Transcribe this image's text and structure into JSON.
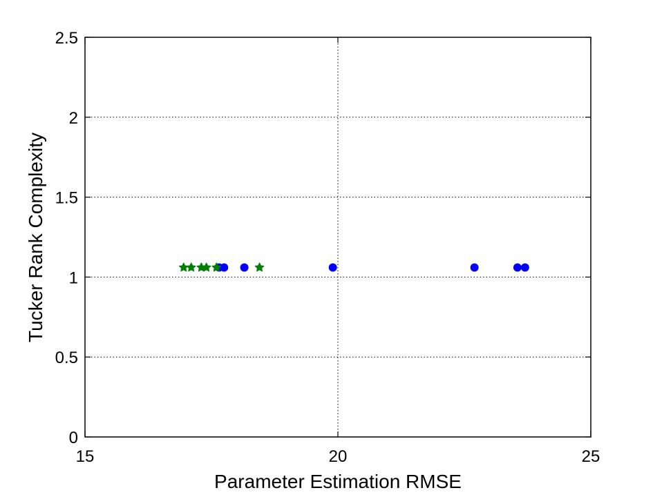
{
  "chart_data": {
    "type": "scatter",
    "title": "",
    "xlabel": "Parameter Estimation RMSE",
    "ylabel": "Tucker Rank Complexity",
    "xlim": [
      15,
      25
    ],
    "ylim": [
      0,
      2.5
    ],
    "x_ticks": [
      15,
      20,
      25
    ],
    "x_tick_labels": [
      "15",
      "20",
      "25"
    ],
    "y_ticks": [
      0,
      0.5,
      1,
      1.5,
      2,
      2.5
    ],
    "y_tick_labels": [
      "0",
      "0.5",
      "1",
      "1.5",
      "2",
      "2.5"
    ],
    "grid": true,
    "legend": "none",
    "series": [
      {
        "marker": "circle",
        "color": "#0000ff",
        "points": [
          {
            "x": 17.65,
            "y": 1.06
          },
          {
            "x": 17.75,
            "y": 1.06
          },
          {
            "x": 18.15,
            "y": 1.06
          },
          {
            "x": 19.9,
            "y": 1.06
          },
          {
            "x": 22.7,
            "y": 1.06
          },
          {
            "x": 23.55,
            "y": 1.06
          },
          {
            "x": 23.7,
            "y": 1.06
          }
        ]
      },
      {
        "marker": "star",
        "color": "#007f00",
        "points": [
          {
            "x": 16.95,
            "y": 1.06
          },
          {
            "x": 17.1,
            "y": 1.06
          },
          {
            "x": 17.3,
            "y": 1.06
          },
          {
            "x": 17.4,
            "y": 1.06
          },
          {
            "x": 17.6,
            "y": 1.06
          },
          {
            "x": 18.45,
            "y": 1.06
          }
        ]
      }
    ]
  }
}
